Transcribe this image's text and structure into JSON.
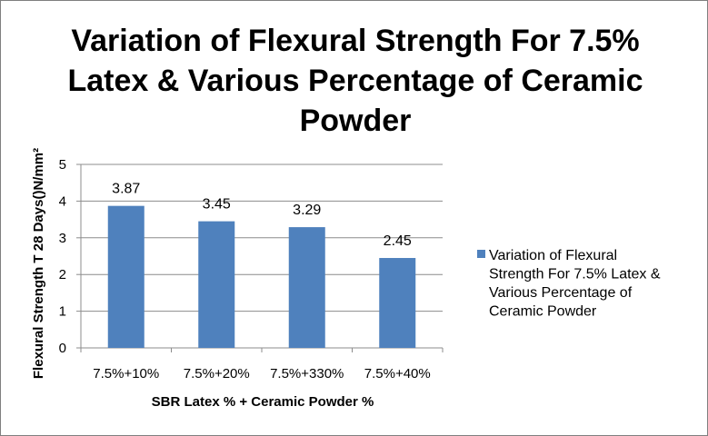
{
  "chart_data": {
    "type": "bar",
    "title_lines": [
      "Variation of Flexural Strength For 7.5%",
      "Latex & Various Percentage of Ceramic",
      "Powder"
    ],
    "categories": [
      "7.5%+10%",
      "7.5%+20%",
      "7.5%+330%",
      "7.5%+40%"
    ],
    "series": [
      {
        "name": "Variation of Flexural Strength For 7.5% Latex & Various Percentage of Ceramic Powder",
        "values": [
          3.87,
          3.45,
          3.29,
          2.45
        ],
        "data_labels": [
          "3.87",
          "3.45",
          "3.29",
          "2.45"
        ],
        "color": "#4f81bd"
      }
    ],
    "legend_lines": [
      "Variation of Flexural",
      "Strength For 7.5% Latex &",
      "Various Percentage of",
      "Ceramic Powder"
    ],
    "xlabel": "SBR Latex % + Ceramic Powder %",
    "ylabel": "Flexural Strength T 28 Days()N/mm²",
    "ylim": [
      0,
      5
    ],
    "yticks": [
      "0",
      "1",
      "2",
      "3",
      "4",
      "5"
    ],
    "grid": true,
    "legend_position": "right"
  }
}
